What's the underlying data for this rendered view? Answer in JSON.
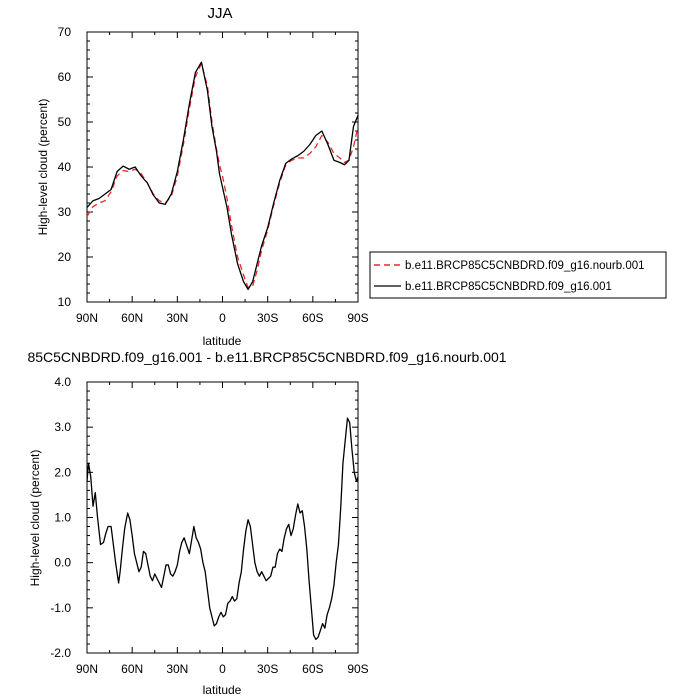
{
  "chart_data": [
    {
      "type": "line",
      "title": "JJA",
      "xlabel": "latitude",
      "ylabel": "High-level cloud (percent)",
      "xlim": [
        90,
        -90
      ],
      "ylim": [
        10,
        70
      ],
      "x_ticks": [
        90,
        60,
        30,
        0,
        -30,
        -60,
        -90
      ],
      "x_tick_labels": [
        "90N",
        "60N",
        "30N",
        "0",
        "30S",
        "60S",
        "90S"
      ],
      "y_ticks": [
        10,
        20,
        30,
        40,
        50,
        60,
        70
      ],
      "y_tick_labels": [
        "10",
        "20",
        "30",
        "40",
        "50",
        "60",
        "70"
      ],
      "legend": [
        {
          "label": "b.e11.BRCP85C5CNBDRD.f09_g16.nourb.001",
          "color": "#e8292b",
          "dash": "dashed"
        },
        {
          "label": "b.e11.BRCP85C5CNBDRD.f09_g16.001",
          "color": "#000000",
          "dash": "solid"
        }
      ],
      "series": [
        {
          "name": "b.e11.BRCP85C5CNBDRD.f09_g16.nourb.001",
          "color": "#e8292b",
          "x": [
            90,
            86,
            82,
            78,
            74,
            70,
            66,
            62,
            58,
            54,
            50,
            46,
            42,
            38,
            34,
            30,
            26,
            22,
            18,
            14,
            10,
            7,
            4,
            2,
            0,
            -3,
            -6,
            -10,
            -14,
            -17,
            -20,
            -23,
            -26,
            -30,
            -34,
            -38,
            -42,
            -46,
            -50,
            -54,
            -58,
            -62,
            -66,
            -70,
            -74,
            -78,
            -81,
            -84,
            -87,
            -90
          ],
          "y": [
            29.0,
            31.2,
            32.0,
            32.5,
            34.5,
            38.0,
            39.2,
            39.0,
            39.5,
            38.5,
            36.5,
            34.0,
            32.5,
            32.0,
            33.5,
            38.0,
            45.0,
            53.0,
            60.0,
            63.0,
            58.0,
            50.0,
            44.0,
            40.5,
            38.0,
            33.0,
            27.0,
            20.0,
            16.0,
            13.2,
            13.5,
            17.0,
            21.5,
            26.0,
            31.5,
            36.5,
            40.5,
            41.5,
            42.0,
            42.0,
            43.0,
            44.5,
            47.0,
            45.5,
            43.0,
            42.0,
            41.0,
            41.5,
            44.5,
            49.0
          ]
        },
        {
          "name": "b.e11.BRCP85C5CNBDRD.f09_g16.001",
          "color": "#000000",
          "x": [
            90,
            86,
            82,
            78,
            74,
            70,
            66,
            62,
            58,
            54,
            50,
            46,
            42,
            38,
            34,
            30,
            26,
            22,
            18,
            14,
            10,
            7,
            4,
            2,
            0,
            -3,
            -6,
            -10,
            -14,
            -17,
            -20,
            -23,
            -26,
            -30,
            -34,
            -38,
            -42,
            -46,
            -50,
            -54,
            -58,
            -62,
            -66,
            -70,
            -74,
            -78,
            -81,
            -84,
            -87,
            -90
          ],
          "y": [
            31.0,
            32.5,
            33.0,
            34.0,
            35.0,
            39.0,
            40.2,
            39.5,
            40.0,
            38.0,
            36.5,
            33.8,
            32.0,
            31.7,
            34.0,
            39.0,
            46.0,
            54.0,
            61.0,
            63.3,
            57.0,
            49.0,
            43.5,
            38.5,
            35.5,
            31.0,
            25.0,
            18.5,
            14.5,
            12.8,
            14.5,
            18.5,
            22.5,
            26.5,
            32.0,
            37.0,
            40.8,
            41.8,
            42.5,
            43.5,
            45.0,
            47.0,
            48.0,
            45.0,
            41.5,
            41.0,
            40.5,
            41.5,
            49.0,
            51.5
          ]
        }
      ]
    },
    {
      "type": "line",
      "title": "85C5CNBDRD.f09_g16.001 - b.e11.BRCP85C5CNBDRD.f09_g16.nourb.001",
      "xlabel": "latitude",
      "ylabel": "High-level cloud (percent)",
      "xlim": [
        90,
        -90
      ],
      "ylim": [
        -2.0,
        4.0
      ],
      "x_ticks": [
        90,
        60,
        30,
        0,
        -30,
        -60,
        -90
      ],
      "x_tick_labels": [
        "90N",
        "60N",
        "30N",
        "0",
        "30S",
        "60S",
        "90S"
      ],
      "y_ticks": [
        -2.0,
        -1.0,
        0.0,
        1.0,
        2.0,
        3.0,
        4.0
      ],
      "y_tick_labels": [
        "-2.0",
        "-1.0",
        "0.0",
        "1.0",
        "2.0",
        "3.0",
        "4.0"
      ],
      "series": [
        {
          "color": "#000000",
          "x": [
            90,
            89,
            87.5,
            86,
            84.5,
            83,
            81,
            79,
            77.5,
            76,
            74,
            72.5,
            71,
            69,
            68,
            66.5,
            65,
            63,
            61.5,
            60,
            58.5,
            57,
            55.5,
            54,
            52.5,
            51,
            49.5,
            48,
            46.5,
            45,
            43.5,
            42,
            40.5,
            39,
            37.5,
            36,
            34.5,
            33,
            31.5,
            30,
            28.5,
            27,
            25.5,
            24,
            22,
            20.5,
            19,
            17.5,
            16,
            14.5,
            13,
            11.5,
            10,
            8.5,
            7,
            5.5,
            4,
            2.5,
            1,
            -0.5,
            -2,
            -3.5,
            -5,
            -6.5,
            -8,
            -9.5,
            -11,
            -12.5,
            -14,
            -15.5,
            -17,
            -18.5,
            -20,
            -21.5,
            -23,
            -24.5,
            -26,
            -27.5,
            -29,
            -30.5,
            -32,
            -33.5,
            -35,
            -36.5,
            -38,
            -39.5,
            -41,
            -42.5,
            -44,
            -45.5,
            -47,
            -48.5,
            -50,
            -51.5,
            -53,
            -54.5,
            -56,
            -57.5,
            -59,
            -60.5,
            -62,
            -63.5,
            -65,
            -66.5,
            -68,
            -69.5,
            -71,
            -72.5,
            -74,
            -75.5,
            -77,
            -78.5,
            -80,
            -81.5,
            -83,
            -84.5,
            -86,
            -87.5,
            -89,
            -90
          ],
          "y": [
            1.8,
            2.2,
            1.9,
            1.25,
            1.55,
            1.0,
            0.4,
            0.45,
            0.65,
            0.8,
            0.8,
            0.4,
            0.0,
            -0.45,
            -0.2,
            0.3,
            0.75,
            1.1,
            0.95,
            0.6,
            0.2,
            0.0,
            -0.2,
            -0.1,
            0.25,
            0.2,
            -0.05,
            -0.3,
            -0.4,
            -0.25,
            -0.35,
            -0.45,
            -0.55,
            -0.3,
            -0.05,
            -0.05,
            -0.25,
            -0.3,
            -0.2,
            -0.05,
            0.25,
            0.45,
            0.55,
            0.4,
            0.2,
            0.5,
            0.8,
            0.55,
            0.45,
            0.3,
            0.0,
            -0.2,
            -0.6,
            -1.0,
            -1.2,
            -1.4,
            -1.35,
            -1.2,
            -1.1,
            -1.2,
            -1.15,
            -0.9,
            -0.85,
            -0.75,
            -0.85,
            -0.8,
            -0.45,
            -0.2,
            0.3,
            0.7,
            0.95,
            0.8,
            0.4,
            0.0,
            -0.2,
            -0.3,
            -0.2,
            -0.3,
            -0.4,
            -0.35,
            -0.3,
            -0.1,
            -0.1,
            0.2,
            0.3,
            0.25,
            0.55,
            0.75,
            0.85,
            0.6,
            0.75,
            1.05,
            1.3,
            1.1,
            1.15,
            0.8,
            0.3,
            -0.4,
            -1.0,
            -1.6,
            -1.7,
            -1.65,
            -1.5,
            -1.35,
            -1.45,
            -1.15,
            -1.0,
            -0.8,
            -0.5,
            0.0,
            0.4,
            1.2,
            2.2,
            2.7,
            3.2,
            3.1,
            2.5,
            2.0,
            1.8,
            1.9
          ]
        }
      ]
    }
  ]
}
